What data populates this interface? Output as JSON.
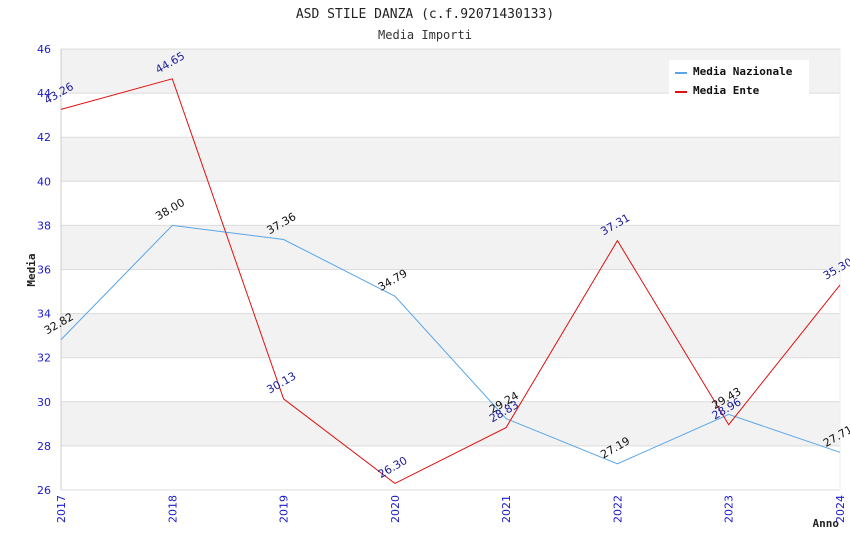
{
  "chart_data": {
    "type": "line",
    "title": "ASD STILE DANZA (c.f.92071430133)",
    "subtitle": "Media Importi",
    "xlabel": "Anno",
    "ylabel": "Media",
    "categories": [
      "2017",
      "2018",
      "2019",
      "2020",
      "2021",
      "2022",
      "2023",
      "2024"
    ],
    "ylim": [
      26,
      46
    ],
    "yticks": [
      "26",
      "28",
      "30",
      "32",
      "34",
      "36",
      "38",
      "40",
      "42",
      "44",
      "46"
    ],
    "legend_position": "top-right",
    "series": [
      {
        "name": "Media Nazionale",
        "color": "#5aa5e6",
        "label_color": "#111111",
        "values": [
          32.82,
          38.0,
          37.36,
          34.79,
          29.24,
          27.19,
          29.43,
          27.71
        ],
        "labels": [
          "32.82",
          "38.00",
          "37.36",
          "34.79",
          "29.24",
          "27.19",
          "29.43",
          "27.71"
        ]
      },
      {
        "name": "Media Ente",
        "color": "#e01010",
        "label_color": "#1a1a99",
        "values": [
          43.26,
          44.65,
          30.13,
          26.3,
          28.83,
          37.31,
          28.96,
          35.3
        ],
        "labels": [
          "43.26",
          "44.65",
          "30.13",
          "26.30",
          "28.83",
          "37.31",
          "28.96",
          "35.30"
        ]
      }
    ]
  }
}
